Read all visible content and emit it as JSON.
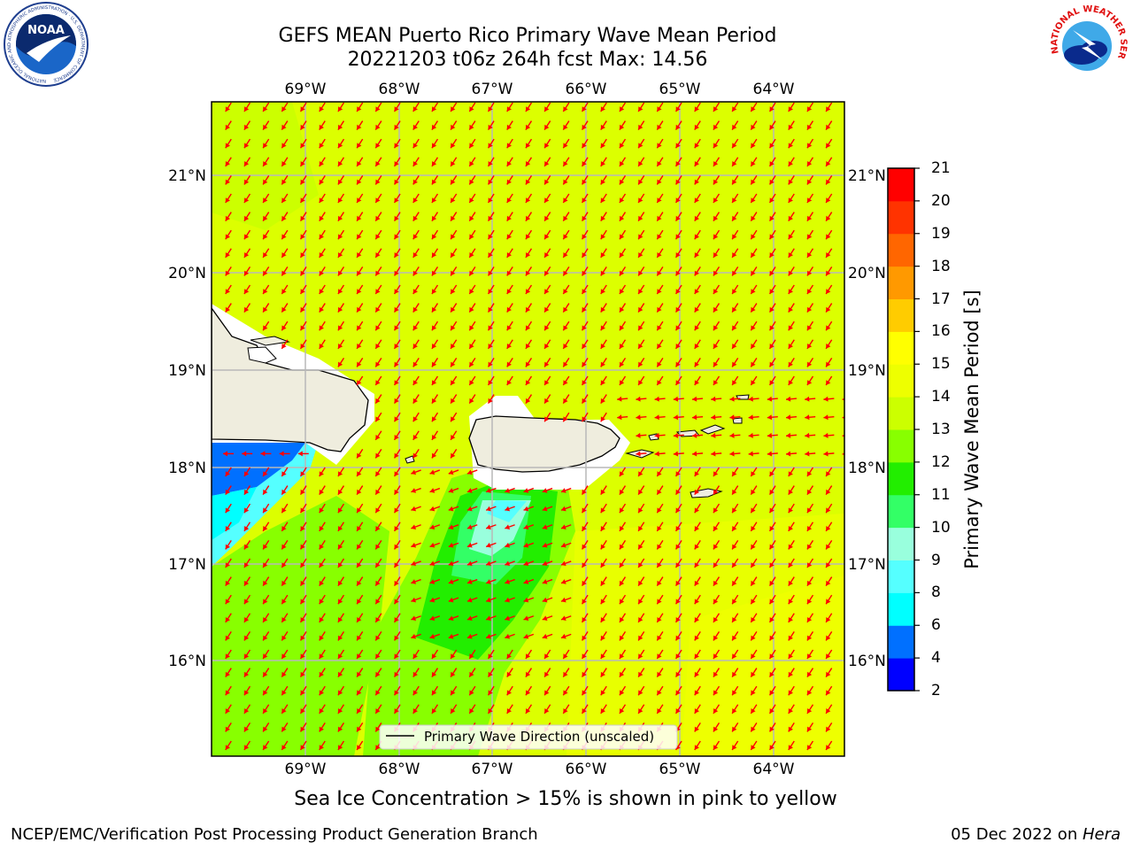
{
  "title": {
    "line1": "GEFS MEAN Puerto Rico Primary Wave Mean Period",
    "line2": "20221203 t06z 264h fcst   Max: 14.56"
  },
  "map": {
    "longitude_ticks": [
      "69°W",
      "68°W",
      "67°W",
      "66°W",
      "65°W",
      "64°W"
    ],
    "latitude_ticks": [
      "21°N",
      "20°N",
      "19°N",
      "18°N",
      "17°N",
      "16°N"
    ],
    "legend_label": "Primary Wave Direction (unscaled)",
    "arrow_color": "#ff0000",
    "land_color": "#efedde"
  },
  "colorbar": {
    "title": "Primary Wave Mean Period [s]",
    "tick_labels": [
      "21",
      "20",
      "19",
      "18",
      "17",
      "16",
      "15",
      "14",
      "13",
      "12",
      "11",
      "10",
      "9",
      "8",
      "6",
      "4",
      "2"
    ],
    "colors_bottom_to_top": [
      "#0000ff",
      "#0070ff",
      "#00ffff",
      "#55ffff",
      "#99ffdd",
      "#33ff66",
      "#22ee00",
      "#88ff00",
      "#ccff00",
      "#eeff00",
      "#ffff00",
      "#ffcc00",
      "#ff9900",
      "#ff6600",
      "#ff3300",
      "#ff0000"
    ]
  },
  "ice_note": "Sea Ice Concentration > 15% is shown in pink to yellow",
  "footer": {
    "left": "NCEP/EMC/Verification Post Processing Product Generation Branch",
    "right_prefix": "05 Dec 2022 on ",
    "right_machine": "Hera"
  },
  "logos": {
    "noaa": "NOAA",
    "noaa_ring": "NATIONAL OCEANIC AND ATMOSPHERIC ADMINISTRATION · U.S. DEPARTMENT OF COMMERCE",
    "nws_ring": "NATIONAL WEATHER SERVICE"
  }
}
